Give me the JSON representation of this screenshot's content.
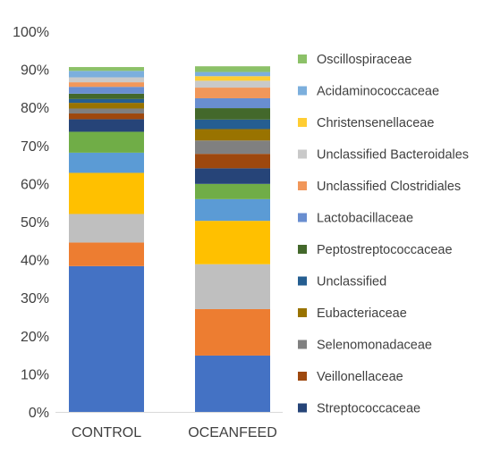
{
  "chart_data": {
    "type": "bar",
    "stacked": true,
    "categories": [
      "CONTROL",
      "OCEANFEED"
    ],
    "ylim": [
      0,
      100
    ],
    "ytick_values": [
      0,
      10,
      20,
      30,
      40,
      50,
      60,
      70,
      80,
      90,
      100
    ],
    "ytick_labels": [
      "0%",
      "10%",
      "20%",
      "30%",
      "40%",
      "50%",
      "60%",
      "70%",
      "80%",
      "90%",
      "100%"
    ],
    "grid": false,
    "legend_position": "right",
    "series": [
      {
        "name": "",
        "color": "#4472C4",
        "values": [
          38.3,
          14.8
        ]
      },
      {
        "name": "",
        "color": "#ED7D31",
        "values": [
          6.2,
          12.2
        ]
      },
      {
        "name": "",
        "color": "#BFBFBF",
        "values": [
          7.5,
          11.8
        ]
      },
      {
        "name": "",
        "color": "#FFC000",
        "values": [
          10.8,
          11.4
        ]
      },
      {
        "name": "",
        "color": "#5B9BD5",
        "values": [
          5.3,
          5.7
        ]
      },
      {
        "name": "",
        "color": "#70AD47",
        "values": [
          5.5,
          4.0
        ]
      },
      {
        "name": "Streptococcaceae",
        "color": "#264478",
        "values": [
          3.3,
          4.1
        ]
      },
      {
        "name": "Veillonellaceae",
        "color": "#9E480E",
        "values": [
          1.5,
          3.8
        ]
      },
      {
        "name": "Selenomonadaceae",
        "color": "#808080",
        "values": [
          1.3,
          3.5
        ]
      },
      {
        "name": "Eubacteriaceae",
        "color": "#997300",
        "values": [
          1.5,
          3.0
        ]
      },
      {
        "name": "Unclassified",
        "color": "#255E91",
        "values": [
          1.0,
          2.5
        ]
      },
      {
        "name": "Peptostreptococcaceae",
        "color": "#43682B",
        "values": [
          1.4,
          3.0
        ]
      },
      {
        "name": "Lactobacillaceae",
        "color": "#698ED0",
        "values": [
          1.8,
          2.6
        ]
      },
      {
        "name": "Unclassified Clostridiales",
        "color": "#F1975A",
        "values": [
          1.2,
          2.8
        ]
      },
      {
        "name": "Unclassified Bacteroidales",
        "color": "#C9C9C9",
        "values": [
          1.3,
          1.8
        ]
      },
      {
        "name": "Christensenellaceae",
        "color": "#FFCD33",
        "values": [
          0.0,
          1.2
        ]
      },
      {
        "name": "Acidaminococcaceae",
        "color": "#7CAFDD",
        "values": [
          1.7,
          1.1
        ]
      },
      {
        "name": "Oscillospiraceae",
        "color": "#8CC168",
        "values": [
          1.0,
          1.5
        ]
      }
    ],
    "legend_order": [
      "Oscillospiraceae",
      "Acidaminococcaceae",
      "Christensenellaceae",
      "Unclassified Bacteroidales",
      "Unclassified Clostridiales",
      "Lactobacillaceae",
      "Peptostreptococcaceae",
      "Unclassified",
      "Eubacteriaceae",
      "Selenomonadaceae",
      "Veillonellaceae",
      "Streptococcaceae"
    ]
  }
}
